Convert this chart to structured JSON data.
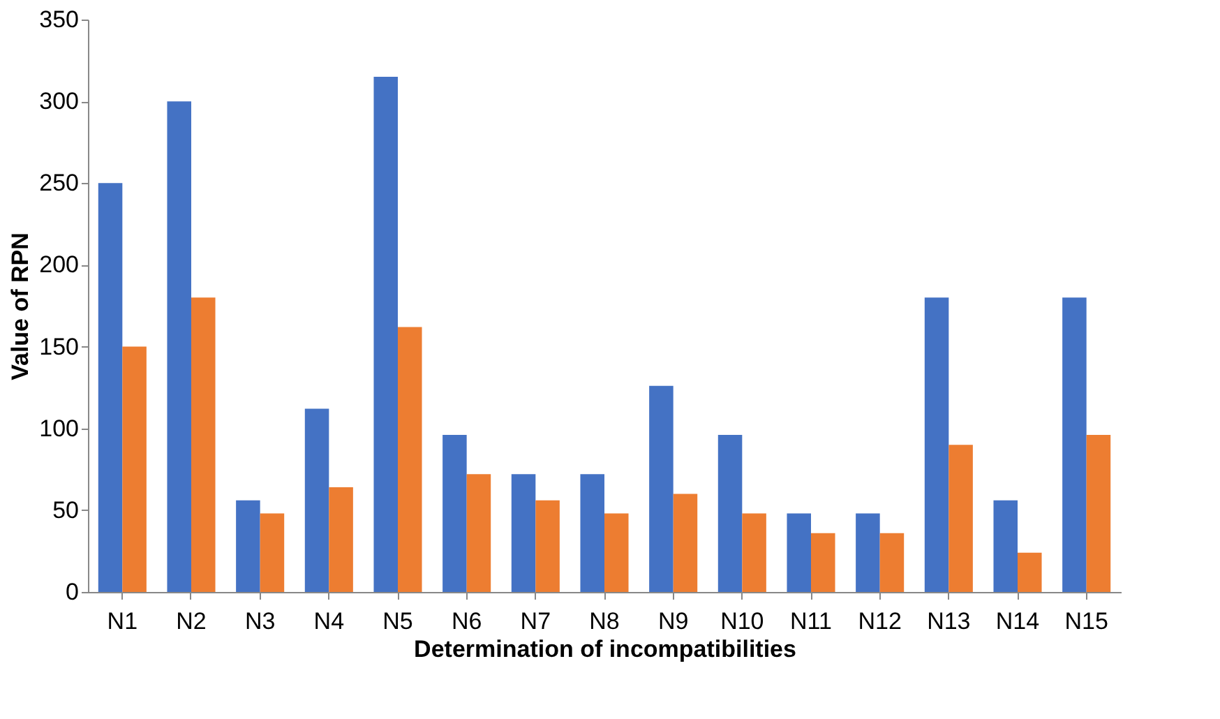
{
  "chart_data": {
    "type": "bar",
    "xlabel": "Determination of incompatibilities",
    "ylabel": "Value of RPN",
    "categories": [
      "N1",
      "N2",
      "N3",
      "N4",
      "N5",
      "N6",
      "N7",
      "N8",
      "N9",
      "N10",
      "N11",
      "N12",
      "N13",
      "N14",
      "N15"
    ],
    "series": [
      {
        "color": "#4472c4",
        "values": [
          250,
          300,
          56,
          112,
          315,
          96,
          72,
          72,
          126,
          96,
          48,
          48,
          180,
          56,
          180
        ]
      },
      {
        "color": "#ed7d31",
        "values": [
          150,
          180,
          48,
          64,
          162,
          72,
          56,
          48,
          60,
          48,
          36,
          36,
          90,
          24,
          96
        ]
      }
    ],
    "ylim": [
      0,
      350
    ],
    "yticks": [
      0,
      50,
      100,
      150,
      200,
      250,
      300,
      350
    ],
    "grid": false
  }
}
